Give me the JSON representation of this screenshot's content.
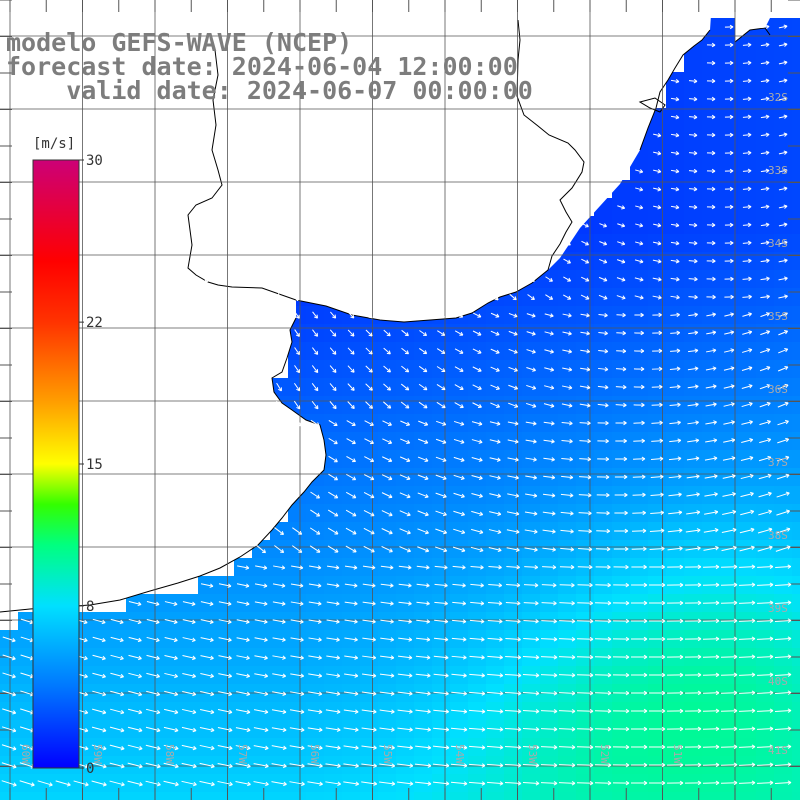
{
  "title": {
    "line1": "modelo GEFS-WAVE (NCEP)",
    "line2": "forecast date: 2024-06-04 12:00:00",
    "line3": "    valid date: 2024-06-07 00:00:00"
  },
  "colorbar": {
    "unit": "[m/s]",
    "ticks": [
      "30",
      "22",
      "15",
      "8",
      "0"
    ],
    "tick_values": [
      30,
      22,
      15,
      8,
      0
    ],
    "range": [
      0,
      30
    ],
    "stops": [
      {
        "value": 0,
        "color": "#0000ff"
      },
      {
        "value": 4,
        "color": "#0077ff"
      },
      {
        "value": 8,
        "color": "#00e0ff"
      },
      {
        "value": 11,
        "color": "#00ff80"
      },
      {
        "value": 13,
        "color": "#33ff00"
      },
      {
        "value": 15,
        "color": "#ffff00"
      },
      {
        "value": 18,
        "color": "#ffa000"
      },
      {
        "value": 22,
        "color": "#ff3300"
      },
      {
        "value": 25,
        "color": "#ff0000"
      },
      {
        "value": 30,
        "color": "#cc0077"
      }
    ]
  },
  "map": {
    "lat_labels": [
      "32S",
      "33S",
      "34S",
      "35S",
      "36S",
      "37S",
      "38S",
      "39S",
      "40S",
      "41S"
    ],
    "lat_values": [
      32,
      33,
      34,
      35,
      36,
      37,
      38,
      39,
      40,
      41
    ],
    "lon_labels": [
      "60W",
      "59W",
      "58W",
      "57W",
      "56W",
      "55W",
      "54W",
      "53W",
      "52W",
      "51W"
    ],
    "lon_values": [
      60,
      59,
      58,
      57,
      56,
      55,
      54,
      53,
      52,
      51
    ],
    "land_color": "#ffffff",
    "grid_color": "#555555",
    "arrow_color": "#ffffff"
  }
}
